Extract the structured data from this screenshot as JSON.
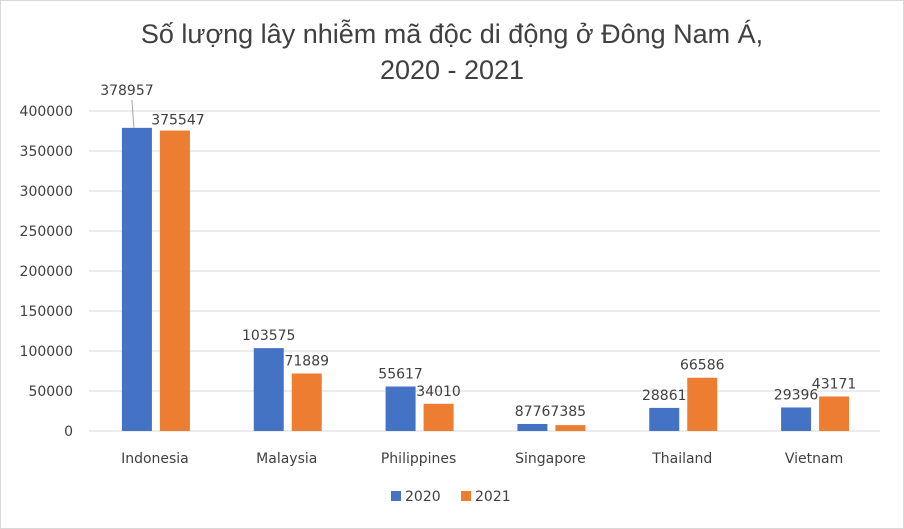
{
  "chart_data": {
    "type": "bar",
    "title_line1": "Số lượng lây nhiễm mã độc di động ở Đông Nam Á,",
    "title_line2": "2020 - 2021",
    "categories": [
      "Indonesia",
      "Malaysia",
      "Philippines",
      "Singapore",
      "Thailand",
      "Vietnam"
    ],
    "series": [
      {
        "name": "2020",
        "color": "#4472C4",
        "values": [
          378957,
          103575,
          55617,
          8776,
          28861,
          29396
        ]
      },
      {
        "name": "2021",
        "color": "#ED7D31",
        "values": [
          375547,
          71889,
          34010,
          7385,
          66586,
          43171
        ]
      }
    ],
    "ylim": [
      0,
      400000
    ],
    "yticks": [
      0,
      50000,
      100000,
      150000,
      200000,
      250000,
      300000,
      350000,
      400000
    ],
    "grid": true,
    "legend": "bottom",
    "data_labels": true
  }
}
